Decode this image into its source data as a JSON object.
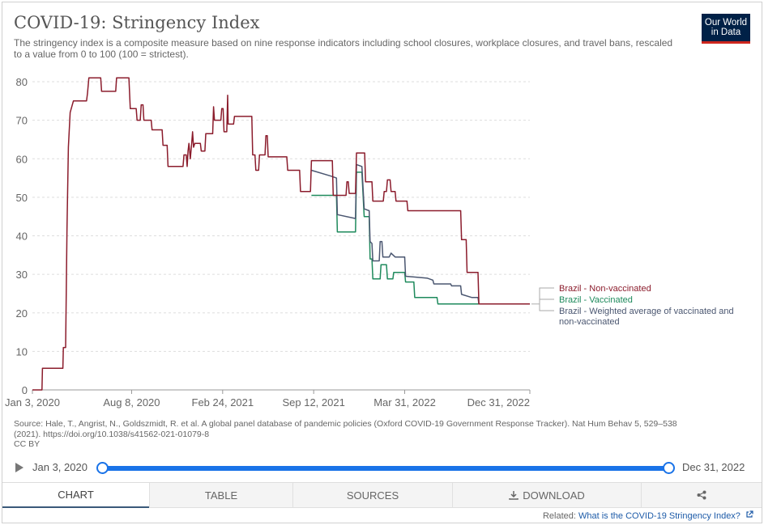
{
  "header": {
    "title": "COVID-19: Stringency Index",
    "subtitle": "The stringency index is a composite measure based on nine response indicators including school closures, workplace closures, and travel bans, rescaled to a value from 0 to 100 (100 = strictest).",
    "logo_line1": "Our World",
    "logo_line2": "in Data"
  },
  "source": {
    "line1": "Source: Hale, T., Angrist, N., Goldszmidt, R. et al. A global panel database of pandemic policies (Oxford COVID-19 Government Response Tracker). Nat Hum Behav 5, 529–538",
    "line2": "(2021). https://doi.org/10.1038/s41562-021-01079-8",
    "line3": "CC BY"
  },
  "timeline": {
    "start_label": "Jan 3, 2020",
    "end_label": "Dec 31, 2022"
  },
  "tabs": {
    "chart": "CHART",
    "table": "TABLE",
    "sources": "SOURCES",
    "download": "DOWNLOAD"
  },
  "related": {
    "prefix": "Related: ",
    "link": "What is the COVID-19 Stringency Index?"
  },
  "colors": {
    "nonvax": "#8b1c2c",
    "vax": "#1e8a5c",
    "weighted": "#4a5670",
    "grid": "#dddddd",
    "accent": "#1a73e8"
  },
  "chart_data": {
    "type": "line",
    "x_type": "date",
    "xlim": [
      "2020-01-03",
      "2022-12-31"
    ],
    "ylim": [
      0,
      80
    ],
    "y_ticks": [
      0,
      10,
      20,
      30,
      40,
      50,
      60,
      70,
      80
    ],
    "x_ticks": [
      "2020-01-03",
      "2020-08-08",
      "2021-02-24",
      "2021-09-12",
      "2022-03-31",
      "2022-12-31"
    ],
    "x_tick_labels": [
      "Jan 3, 2020",
      "Aug 8, 2020",
      "Feb 24, 2021",
      "Sep 12, 2021",
      "Mar 31, 2022",
      "Dec 31, 2022"
    ],
    "grid": "horizontal dashed",
    "legend": "right, at line ends",
    "series": [
      {
        "name": "Brazil - Non-vaccinated",
        "color_key": "nonvax",
        "points": [
          [
            "2020-01-03",
            0
          ],
          [
            "2020-01-24",
            0
          ],
          [
            "2020-01-25",
            5.6
          ],
          [
            "2020-03-10",
            5.6
          ],
          [
            "2020-03-11",
            11
          ],
          [
            "2020-03-16",
            11
          ],
          [
            "2020-03-19",
            42
          ],
          [
            "2020-03-22",
            63
          ],
          [
            "2020-03-26",
            72
          ],
          [
            "2020-04-02",
            75
          ],
          [
            "2020-05-01",
            75
          ],
          [
            "2020-05-03",
            77
          ],
          [
            "2020-05-06",
            81
          ],
          [
            "2020-06-01",
            81
          ],
          [
            "2020-06-03",
            77.5
          ],
          [
            "2020-07-04",
            77.5
          ],
          [
            "2020-07-06",
            81
          ],
          [
            "2020-08-02",
            81
          ],
          [
            "2020-08-05",
            73
          ],
          [
            "2020-08-18",
            73
          ],
          [
            "2020-08-20",
            70
          ],
          [
            "2020-08-27",
            70
          ],
          [
            "2020-08-29",
            74
          ],
          [
            "2020-09-02",
            74
          ],
          [
            "2020-09-04",
            70
          ],
          [
            "2020-09-20",
            70
          ],
          [
            "2020-09-22",
            67.5
          ],
          [
            "2020-10-14",
            67.5
          ],
          [
            "2020-10-16",
            63.5
          ],
          [
            "2020-10-25",
            63.5
          ],
          [
            "2020-10-27",
            58
          ],
          [
            "2020-11-29",
            58
          ],
          [
            "2020-12-01",
            61
          ],
          [
            "2020-12-06",
            61
          ],
          [
            "2020-12-08",
            58
          ],
          [
            "2020-12-10",
            62
          ],
          [
            "2020-12-12",
            64
          ],
          [
            "2020-12-15",
            60
          ],
          [
            "2020-12-18",
            64
          ],
          [
            "2020-12-20",
            67
          ],
          [
            "2020-12-22",
            63
          ],
          [
            "2020-12-25",
            64
          ],
          [
            "2021-01-06",
            64
          ],
          [
            "2021-01-08",
            62
          ],
          [
            "2021-01-16",
            62
          ],
          [
            "2021-01-18",
            66.5
          ],
          [
            "2021-02-02",
            66.5
          ],
          [
            "2021-02-04",
            73.5
          ],
          [
            "2021-02-06",
            70
          ],
          [
            "2021-02-20",
            70
          ],
          [
            "2021-02-22",
            73
          ],
          [
            "2021-02-25",
            73
          ],
          [
            "2021-02-27",
            67
          ],
          [
            "2021-03-05",
            67
          ],
          [
            "2021-03-07",
            76.5
          ],
          [
            "2021-03-08",
            69
          ],
          [
            "2021-03-20",
            69
          ],
          [
            "2021-03-22",
            71
          ],
          [
            "2021-04-29",
            71
          ],
          [
            "2021-05-01",
            61
          ],
          [
            "2021-05-06",
            61
          ],
          [
            "2021-05-08",
            57
          ],
          [
            "2021-05-14",
            57
          ],
          [
            "2021-05-16",
            61
          ],
          [
            "2021-05-28",
            61
          ],
          [
            "2021-05-30",
            66
          ],
          [
            "2021-06-02",
            66
          ],
          [
            "2021-06-04",
            60.5
          ],
          [
            "2021-07-15",
            60.5
          ],
          [
            "2021-07-17",
            57
          ],
          [
            "2021-08-12",
            57
          ],
          [
            "2021-08-14",
            51.5
          ],
          [
            "2021-09-05",
            51.5
          ],
          [
            "2021-09-07",
            59.5
          ],
          [
            "2021-10-23",
            59.5
          ],
          [
            "2021-10-25",
            50.5
          ],
          [
            "2021-11-22",
            50.5
          ],
          [
            "2021-11-24",
            54
          ],
          [
            "2021-11-27",
            54
          ],
          [
            "2021-11-29",
            51
          ],
          [
            "2021-12-13",
            51
          ],
          [
            "2021-12-15",
            61.5
          ],
          [
            "2022-01-02",
            61.5
          ],
          [
            "2022-01-04",
            54
          ],
          [
            "2022-01-18",
            54
          ],
          [
            "2022-01-20",
            49
          ],
          [
            "2022-02-12",
            49
          ],
          [
            "2022-02-14",
            51.5
          ],
          [
            "2022-02-19",
            51.5
          ],
          [
            "2022-02-21",
            54.5
          ],
          [
            "2022-02-27",
            54.5
          ],
          [
            "2022-03-01",
            51.5
          ],
          [
            "2022-03-10",
            51.5
          ],
          [
            "2022-03-12",
            49
          ],
          [
            "2022-04-05",
            49
          ],
          [
            "2022-04-07",
            46.5
          ],
          [
            "2022-08-01",
            46.5
          ],
          [
            "2022-08-03",
            39
          ],
          [
            "2022-08-13",
            39
          ],
          [
            "2022-08-15",
            30.5
          ],
          [
            "2022-09-08",
            30.5
          ],
          [
            "2022-09-10",
            22.3
          ],
          [
            "2022-12-31",
            22.3
          ]
        ]
      },
      {
        "name": "Brazil - Vaccinated",
        "color_key": "vax",
        "points": [
          [
            "2021-09-07",
            50.5
          ],
          [
            "2021-11-01",
            50.5
          ],
          [
            "2021-11-03",
            41
          ],
          [
            "2021-12-13",
            41
          ],
          [
            "2021-12-15",
            56.5
          ],
          [
            "2021-12-27",
            56.5
          ],
          [
            "2022-01-01",
            45
          ],
          [
            "2022-01-12",
            45
          ],
          [
            "2022-01-14",
            34
          ],
          [
            "2022-01-18",
            34
          ],
          [
            "2022-01-20",
            28.8
          ],
          [
            "2022-02-05",
            28.8
          ],
          [
            "2022-02-07",
            32.5
          ],
          [
            "2022-02-19",
            32.5
          ],
          [
            "2022-02-21",
            28.8
          ],
          [
            "2022-03-05",
            28.8
          ],
          [
            "2022-03-07",
            30.5
          ],
          [
            "2022-03-31",
            30.5
          ],
          [
            "2022-04-02",
            28
          ],
          [
            "2022-04-20",
            28
          ],
          [
            "2022-04-22",
            24
          ],
          [
            "2022-06-10",
            24
          ],
          [
            "2022-06-12",
            22.3
          ],
          [
            "2022-12-31",
            22.3
          ]
        ]
      },
      {
        "name": "Brazil - Weighted average of vaccinated and non-vaccinated",
        "color_key": "weighted",
        "points": [
          [
            "2021-09-07",
            57
          ],
          [
            "2021-10-20",
            55.5
          ],
          [
            "2021-11-01",
            55
          ],
          [
            "2021-11-03",
            45.5
          ],
          [
            "2021-12-13",
            44.5
          ],
          [
            "2021-12-15",
            58.5
          ],
          [
            "2021-12-27",
            58
          ],
          [
            "2022-01-01",
            47
          ],
          [
            "2022-01-12",
            46.5
          ],
          [
            "2022-01-14",
            38.5
          ],
          [
            "2022-01-18",
            38
          ],
          [
            "2022-01-20",
            33.5
          ],
          [
            "2022-02-03",
            33.5
          ],
          [
            "2022-02-05",
            38.5
          ],
          [
            "2022-02-09",
            38.5
          ],
          [
            "2022-02-11",
            34.5
          ],
          [
            "2022-02-25",
            34.5
          ],
          [
            "2022-03-01",
            35.5
          ],
          [
            "2022-03-10",
            34.5
          ],
          [
            "2022-03-31",
            34.5
          ],
          [
            "2022-04-02",
            29.5
          ],
          [
            "2022-05-20",
            29
          ],
          [
            "2022-06-01",
            28.5
          ],
          [
            "2022-06-03",
            27.5
          ],
          [
            "2022-07-10",
            27.5
          ],
          [
            "2022-07-12",
            27
          ],
          [
            "2022-08-01",
            27
          ],
          [
            "2022-08-03",
            24.8
          ],
          [
            "2022-08-25",
            24
          ],
          [
            "2022-09-08",
            24
          ],
          [
            "2022-09-10",
            22.3
          ],
          [
            "2022-12-31",
            22.3
          ]
        ]
      }
    ]
  }
}
